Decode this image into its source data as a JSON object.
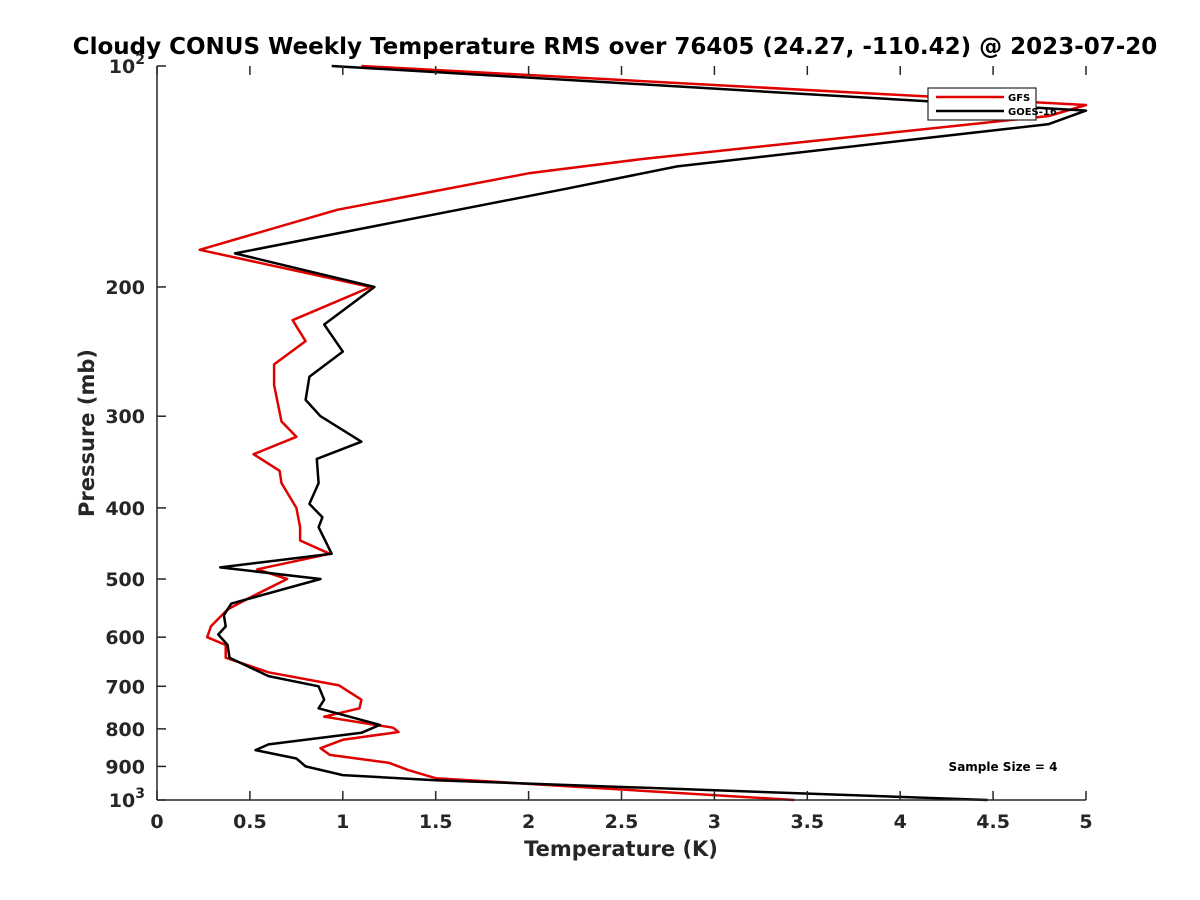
{
  "chart_data": {
    "type": "line",
    "title": "Cloudy CONUS Weekly Temperature RMS over 76405 (24.27, -110.42) @ 2023-07-20",
    "xlabel": "Temperature (K)",
    "ylabel": "Pressure (mb)",
    "xlim": [
      0,
      5
    ],
    "ylim": [
      100,
      1000
    ],
    "yscale": "log",
    "y_reversed": true,
    "grid": false,
    "legend_position": "top-right",
    "xticks": [
      "0",
      "0.5",
      "1",
      "1.5",
      "2",
      "2.5",
      "3",
      "3.5",
      "4",
      "4.5",
      "5"
    ],
    "xtick_values": [
      0,
      0.5,
      1,
      1.5,
      2,
      2.5,
      3,
      3.5,
      4,
      4.5,
      5
    ],
    "yticks": [
      {
        "value": 100,
        "base": "10",
        "exp": "2"
      },
      {
        "value": 200,
        "base": "200",
        "exp": ""
      },
      {
        "value": 300,
        "base": "300",
        "exp": ""
      },
      {
        "value": 400,
        "base": "400",
        "exp": ""
      },
      {
        "value": 500,
        "base": "500",
        "exp": ""
      },
      {
        "value": 600,
        "base": "600",
        "exp": ""
      },
      {
        "value": 700,
        "base": "700",
        "exp": ""
      },
      {
        "value": 800,
        "base": "800",
        "exp": ""
      },
      {
        "value": 900,
        "base": "900",
        "exp": ""
      },
      {
        "value": 1000,
        "base": "10",
        "exp": "3"
      }
    ],
    "annotation": "Sample Size = 4",
    "series": [
      {
        "name": "GFS",
        "color": "#e00000",
        "points": [
          [
            1.1,
            100
          ],
          [
            5.0,
            113
          ],
          [
            4.8,
            117
          ],
          [
            2.6,
            134
          ],
          [
            2.0,
            140
          ],
          [
            0.97,
            157
          ],
          [
            0.23,
            178
          ],
          [
            1.15,
            200
          ],
          [
            0.73,
            222
          ],
          [
            0.8,
            237
          ],
          [
            0.63,
            255
          ],
          [
            0.63,
            272
          ],
          [
            0.67,
            305
          ],
          [
            0.75,
            320
          ],
          [
            0.52,
            338
          ],
          [
            0.66,
            356
          ],
          [
            0.67,
            370
          ],
          [
            0.75,
            400
          ],
          [
            0.77,
            425
          ],
          [
            0.77,
            443
          ],
          [
            0.93,
            462
          ],
          [
            0.54,
            485
          ],
          [
            0.7,
            500
          ],
          [
            0.5,
            530
          ],
          [
            0.38,
            550
          ],
          [
            0.29,
            580
          ],
          [
            0.27,
            600
          ],
          [
            0.37,
            615
          ],
          [
            0.37,
            640
          ],
          [
            0.6,
            670
          ],
          [
            0.98,
            698
          ],
          [
            1.1,
            730
          ],
          [
            1.09,
            750
          ],
          [
            0.9,
            770
          ],
          [
            1.27,
            797
          ],
          [
            1.3,
            808
          ],
          [
            1.0,
            828
          ],
          [
            0.88,
            850
          ],
          [
            0.93,
            868
          ],
          [
            1.25,
            890
          ],
          [
            1.35,
            910
          ],
          [
            1.5,
            934
          ],
          [
            3.43,
            1000
          ]
        ]
      },
      {
        "name": "GOES-16",
        "color": "#000000",
        "points": [
          [
            0.94,
            100
          ],
          [
            5.0,
            115
          ],
          [
            4.8,
            120
          ],
          [
            2.8,
            137
          ],
          [
            2.2,
            147
          ],
          [
            0.42,
            180
          ],
          [
            1.17,
            200
          ],
          [
            0.9,
            225
          ],
          [
            1.0,
            245
          ],
          [
            0.82,
            265
          ],
          [
            0.8,
            285
          ],
          [
            0.88,
            300
          ],
          [
            1.1,
            325
          ],
          [
            0.86,
            343
          ],
          [
            0.87,
            370
          ],
          [
            0.82,
            395
          ],
          [
            0.89,
            412
          ],
          [
            0.87,
            425
          ],
          [
            0.94,
            462
          ],
          [
            0.34,
            482
          ],
          [
            0.88,
            500
          ],
          [
            0.4,
            540
          ],
          [
            0.36,
            560
          ],
          [
            0.37,
            580
          ],
          [
            0.33,
            595
          ],
          [
            0.38,
            615
          ],
          [
            0.39,
            640
          ],
          [
            0.6,
            678
          ],
          [
            0.87,
            700
          ],
          [
            0.9,
            730
          ],
          [
            0.87,
            750
          ],
          [
            1.2,
            790
          ],
          [
            1.1,
            810
          ],
          [
            0.6,
            840
          ],
          [
            0.53,
            855
          ],
          [
            0.75,
            878
          ],
          [
            0.8,
            900
          ],
          [
            1.0,
            925
          ],
          [
            1.5,
            940
          ],
          [
            4.47,
            1000
          ]
        ]
      }
    ]
  }
}
